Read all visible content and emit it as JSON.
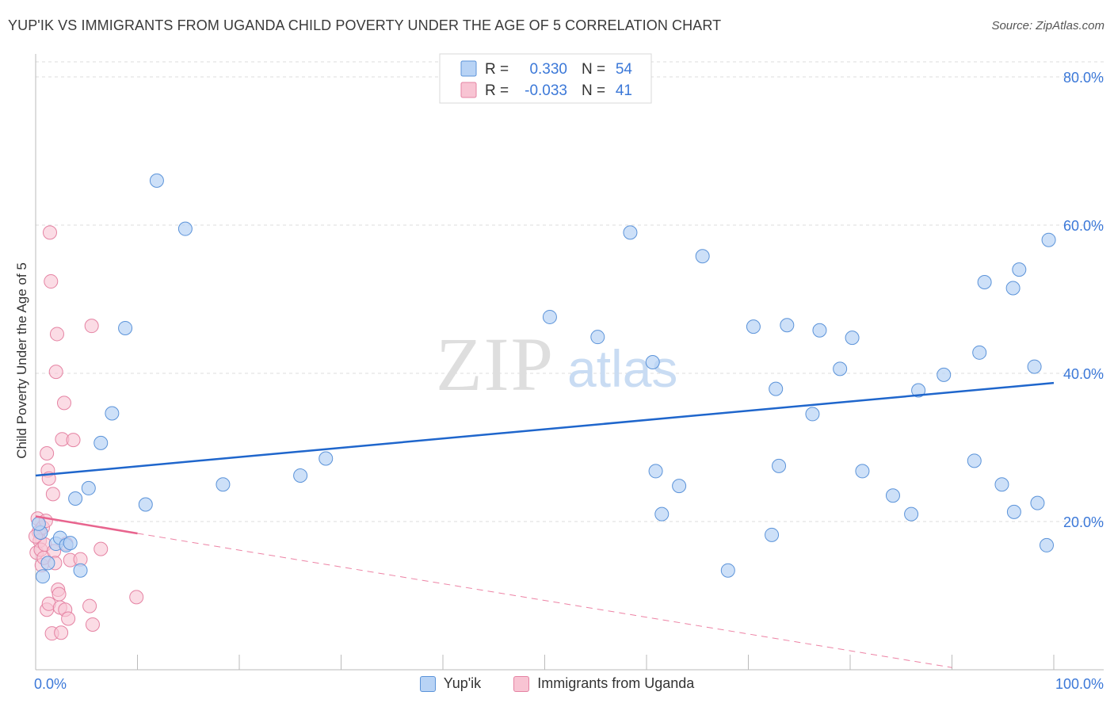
{
  "title": "YUP'IK VS IMMIGRANTS FROM UGANDA CHILD POVERTY UNDER THE AGE OF 5 CORRELATION CHART",
  "source": "Source: ZipAtlas.com",
  "watermark": {
    "zip": "ZIP",
    "atlas": "atlas"
  },
  "colors": {
    "blue_fill": "#b8d3f5",
    "blue_stroke": "#5b93d9",
    "blue_line": "#1f66cc",
    "pink_fill": "#f8c4d3",
    "pink_stroke": "#e583a3",
    "pink_line": "#e8648e",
    "tick_label": "#3b78d8",
    "grid": "#dddddd"
  },
  "legend": {
    "r_label": "R =",
    "n_label": "N =",
    "rows": [
      {
        "r": "0.330",
        "n": "54"
      },
      {
        "r": "-0.033",
        "n": "41"
      }
    ]
  },
  "chart_data": {
    "type": "scatter",
    "title": "YUP'IK VS IMMIGRANTS FROM UGANDA CHILD POVERTY UNDER THE AGE OF 5 CORRELATION CHART",
    "xlabel": "",
    "ylabel": "Child Poverty Under the Age of 5",
    "xlim": [
      0,
      100
    ],
    "ylim": [
      0,
      80
    ],
    "x_tick_labels": [
      "0.0%",
      "100.0%"
    ],
    "y_tick_labels": [
      "20.0%",
      "40.0%",
      "60.0%",
      "80.0%"
    ],
    "y_ticks": [
      20,
      40,
      60,
      80
    ],
    "grid": true,
    "legend_position": "top-center",
    "series": [
      {
        "name": "Yup'ik",
        "r": 0.33,
        "n": 54,
        "trend": {
          "x": [
            0,
            100
          ],
          "y": [
            26.2,
            38.7
          ]
        },
        "points": [
          [
            0.5,
            18.5
          ],
          [
            0.7,
            12.6
          ],
          [
            1.2,
            14.4
          ],
          [
            2.0,
            17.0
          ],
          [
            2.4,
            17.8
          ],
          [
            3.0,
            16.8
          ],
          [
            3.4,
            17.1
          ],
          [
            3.9,
            23.1
          ],
          [
            4.4,
            13.4
          ],
          [
            5.2,
            24.5
          ],
          [
            6.4,
            30.6
          ],
          [
            7.5,
            34.6
          ],
          [
            8.8,
            46.1
          ],
          [
            10.8,
            22.3
          ],
          [
            11.9,
            66.0
          ],
          [
            14.7,
            59.5
          ],
          [
            18.4,
            25.0
          ],
          [
            26.0,
            26.2
          ],
          [
            28.5,
            28.5
          ],
          [
            50.5,
            47.6
          ],
          [
            55.2,
            44.9
          ],
          [
            58.4,
            59.0
          ],
          [
            60.6,
            41.5
          ],
          [
            60.9,
            26.8
          ],
          [
            61.5,
            21.0
          ],
          [
            63.2,
            24.8
          ],
          [
            65.5,
            55.8
          ],
          [
            68.0,
            13.4
          ],
          [
            70.5,
            46.3
          ],
          [
            72.3,
            18.2
          ],
          [
            72.7,
            37.9
          ],
          [
            73.0,
            27.5
          ],
          [
            73.8,
            46.5
          ],
          [
            76.3,
            34.5
          ],
          [
            77.0,
            45.8
          ],
          [
            79.0,
            40.6
          ],
          [
            80.2,
            44.8
          ],
          [
            81.2,
            26.8
          ],
          [
            84.2,
            23.5
          ],
          [
            86.0,
            21.0
          ],
          [
            86.7,
            37.7
          ],
          [
            89.2,
            39.8
          ],
          [
            92.2,
            28.2
          ],
          [
            92.7,
            42.8
          ],
          [
            93.2,
            52.3
          ],
          [
            94.9,
            25.0
          ],
          [
            96.0,
            51.5
          ],
          [
            96.1,
            21.3
          ],
          [
            96.6,
            54.0
          ],
          [
            98.1,
            40.9
          ],
          [
            98.4,
            22.5
          ],
          [
            99.3,
            16.8
          ],
          [
            99.5,
            58.0
          ],
          [
            0.3,
            19.7
          ]
        ]
      },
      {
        "name": "Immigrants from Uganda",
        "r": -0.033,
        "n": 41,
        "trend": {
          "x": [
            0,
            10
          ],
          "y": [
            20.7,
            18.4
          ]
        },
        "trend_dashed": {
          "x": [
            10,
            90
          ],
          "y": [
            18.4,
            0.3
          ]
        },
        "points": [
          [
            0.1,
            15.8
          ],
          [
            0.2,
            20.4
          ],
          [
            0.3,
            18.6
          ],
          [
            0.4,
            17.4
          ],
          [
            0.5,
            16.2
          ],
          [
            0.6,
            14.1
          ],
          [
            0.7,
            19.2
          ],
          [
            0.8,
            15.1
          ],
          [
            0.9,
            16.9
          ],
          [
            1.0,
            20.1
          ],
          [
            1.1,
            29.2
          ],
          [
            1.2,
            26.9
          ],
          [
            1.3,
            25.8
          ],
          [
            1.1,
            8.1
          ],
          [
            1.3,
            8.9
          ],
          [
            1.4,
            59.0
          ],
          [
            1.5,
            52.4
          ],
          [
            1.6,
            4.9
          ],
          [
            1.7,
            23.7
          ],
          [
            1.8,
            16.0
          ],
          [
            1.9,
            14.4
          ],
          [
            2.0,
            40.2
          ],
          [
            2.1,
            45.3
          ],
          [
            2.2,
            10.8
          ],
          [
            2.3,
            10.2
          ],
          [
            2.4,
            8.4
          ],
          [
            2.5,
            5.0
          ],
          [
            2.6,
            31.1
          ],
          [
            2.8,
            36.0
          ],
          [
            2.9,
            8.1
          ],
          [
            3.0,
            17.0
          ],
          [
            3.2,
            6.9
          ],
          [
            3.4,
            14.8
          ],
          [
            3.7,
            31.0
          ],
          [
            4.4,
            14.9
          ],
          [
            5.3,
            8.6
          ],
          [
            5.6,
            6.1
          ],
          [
            5.5,
            46.4
          ],
          [
            6.4,
            16.3
          ],
          [
            9.9,
            9.8
          ],
          [
            0.0,
            18.0
          ]
        ]
      }
    ]
  }
}
